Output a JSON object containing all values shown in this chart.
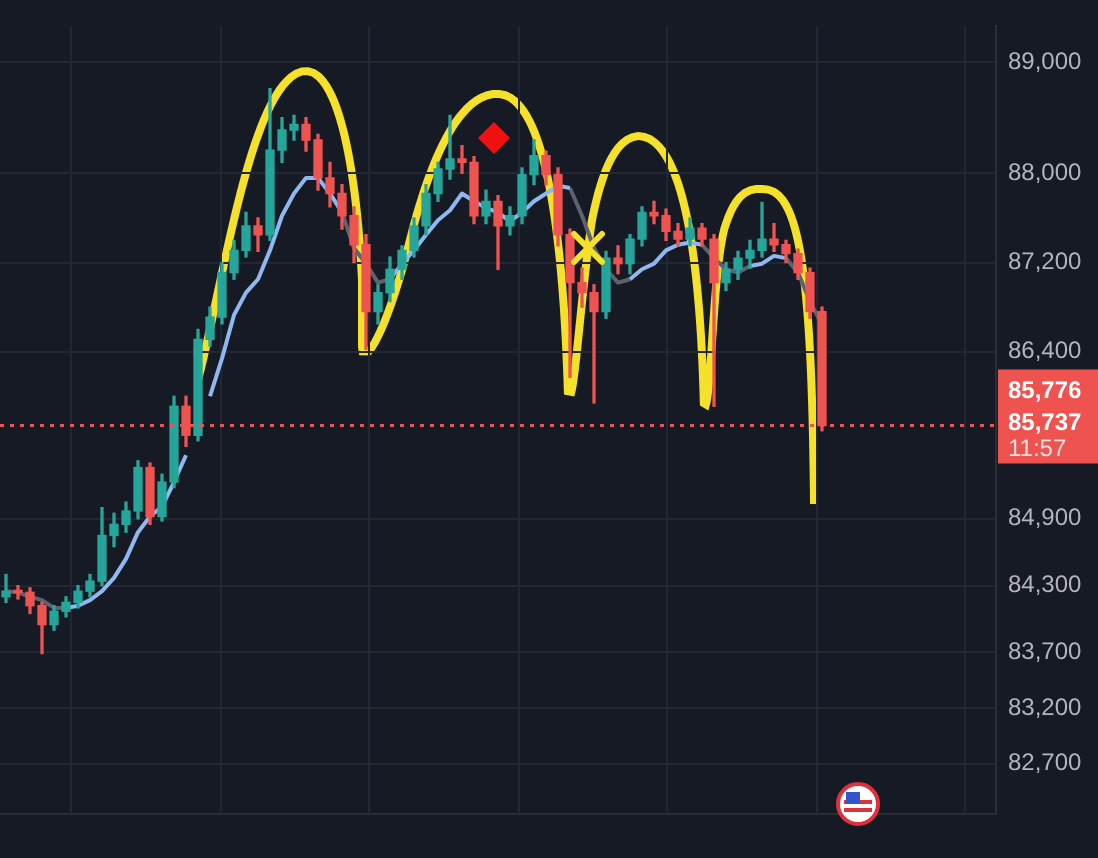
{
  "chart_data": {
    "type": "candlestick",
    "categories": [
      null,
      null,
      null,
      null,
      null,
      null,
      null,
      null,
      null,
      null,
      null,
      null,
      null,
      null,
      null,
      null,
      null,
      null,
      null,
      null,
      null,
      null,
      null,
      null,
      null,
      null,
      null,
      null,
      null,
      null,
      null,
      null,
      null,
      null,
      null,
      null,
      null,
      null,
      null,
      null,
      null,
      null,
      null,
      null,
      null,
      null,
      null,
      null,
      null,
      null,
      null,
      null,
      null,
      null,
      null,
      null,
      null,
      null,
      null,
      null,
      null,
      null,
      null,
      null,
      null,
      null,
      null,
      null,
      null,
      null,
      null,
      null,
      null,
      null,
      null,
      null,
      null,
      null,
      null,
      null,
      null,
      null,
      null
    ],
    "ohlc": [
      [
        84200,
        84400,
        84150,
        84250
      ],
      [
        84250,
        84300,
        84180,
        84240
      ],
      [
        84240,
        84280,
        84050,
        84120
      ],
      [
        84120,
        84150,
        83690,
        83950
      ],
      [
        83950,
        84120,
        83900,
        84070
      ],
      [
        84070,
        84200,
        84020,
        84150
      ],
      [
        84150,
        84300,
        84100,
        84250
      ],
      [
        84250,
        84400,
        84200,
        84340
      ],
      [
        84340,
        85000,
        84300,
        84750
      ],
      [
        84750,
        84950,
        84650,
        84850
      ],
      [
        84850,
        85050,
        84780,
        84970
      ],
      [
        84970,
        85420,
        84900,
        85360
      ],
      [
        85360,
        85400,
        84850,
        84920
      ],
      [
        84920,
        85300,
        84880,
        85230
      ],
      [
        85230,
        86000,
        85180,
        85910
      ],
      [
        85910,
        86000,
        85550,
        85650
      ],
      [
        85650,
        86600,
        85600,
        86510
      ],
      [
        86510,
        86800,
        86450,
        86710
      ],
      [
        86710,
        87200,
        86650,
        87110
      ],
      [
        87110,
        87400,
        87050,
        87310
      ],
      [
        87310,
        87650,
        87250,
        87530
      ],
      [
        87530,
        87600,
        87300,
        87450
      ],
      [
        87450,
        88760,
        87400,
        88210
      ],
      [
        88210,
        88500,
        88100,
        88390
      ],
      [
        88390,
        88520,
        88300,
        88440
      ],
      [
        88440,
        88500,
        88200,
        88300
      ],
      [
        88300,
        88350,
        87850,
        87960
      ],
      [
        87960,
        88100,
        87700,
        87820
      ],
      [
        87820,
        87900,
        87500,
        87620
      ],
      [
        87620,
        87700,
        87200,
        87360
      ],
      [
        87360,
        87450,
        86420,
        86760
      ],
      [
        86760,
        87000,
        86650,
        86930
      ],
      [
        86930,
        87250,
        86850,
        87140
      ],
      [
        87140,
        87350,
        87050,
        87310
      ],
      [
        87310,
        87600,
        87250,
        87530
      ],
      [
        87530,
        87900,
        87450,
        87820
      ],
      [
        87820,
        88100,
        87750,
        88040
      ],
      [
        88040,
        88520,
        87950,
        88130
      ],
      [
        88130,
        88250,
        88000,
        88100
      ],
      [
        88100,
        88150,
        87550,
        87620
      ],
      [
        87620,
        87850,
        87550,
        87750
      ],
      [
        87750,
        87800,
        87140,
        87530
      ],
      [
        87530,
        87700,
        87450,
        87620
      ],
      [
        87620,
        88050,
        87550,
        87990
      ],
      [
        87990,
        88300,
        87900,
        88160
      ],
      [
        88160,
        88200,
        87900,
        87990
      ],
      [
        87990,
        88050,
        87350,
        87450
      ],
      [
        87450,
        87500,
        86170,
        87020
      ],
      [
        87020,
        87150,
        86800,
        86930
      ],
      [
        86930,
        87000,
        85940,
        86760
      ],
      [
        86760,
        87300,
        86700,
        87240
      ],
      [
        87240,
        87350,
        87100,
        87190
      ],
      [
        87190,
        87450,
        87100,
        87410
      ],
      [
        87410,
        87700,
        87350,
        87650
      ],
      [
        87650,
        87750,
        87550,
        87620
      ],
      [
        87620,
        87680,
        87400,
        87480
      ],
      [
        87480,
        87550,
        87350,
        87410
      ],
      [
        87410,
        87600,
        87350,
        87510
      ],
      [
        87510,
        87550,
        87350,
        87410
      ],
      [
        87410,
        87450,
        85910,
        87020
      ],
      [
        87020,
        87200,
        86950,
        87140
      ],
      [
        87140,
        87300,
        87050,
        87240
      ],
      [
        87240,
        87400,
        87150,
        87310
      ],
      [
        87310,
        87740,
        87250,
        87410
      ],
      [
        87410,
        87550,
        87300,
        87360
      ],
      [
        87360,
        87400,
        87200,
        87280
      ],
      [
        87280,
        87320,
        87050,
        87110
      ],
      [
        87110,
        87150,
        86700,
        86760
      ],
      [
        86760,
        86800,
        85690,
        85737
      ],
      null,
      null,
      null,
      null,
      null,
      null,
      null,
      null,
      null,
      null,
      null,
      null,
      null,
      null
    ],
    "colors": [
      "#26a69a",
      "#ef5350",
      "#ef5350",
      "#ef5350",
      "#26a69a",
      "#26a69a",
      "#26a69a",
      "#26a69a",
      "#26a69a",
      "#26a69a",
      "#26a69a",
      "#26a69a",
      "#ef5350",
      "#26a69a",
      "#26a69a",
      "#ef5350",
      "#26a69a",
      "#26a69a",
      "#26a69a",
      "#26a69a",
      "#26a69a",
      "#ef5350",
      "#26a69a",
      "#26a69a",
      "#26a69a",
      "#ef5350",
      "#ef5350",
      "#ef5350",
      "#ef5350",
      "#ef5350",
      "#ef5350",
      "#26a69a",
      "#26a69a",
      "#26a69a",
      "#26a69a",
      "#26a69a",
      "#26a69a",
      "#26a69a",
      "#ef5350",
      "#ef5350",
      "#26a69a",
      "#ef5350",
      "#26a69a",
      "#26a69a",
      "#26a69a",
      "#ef5350",
      "#ef5350",
      "#ef5350",
      "#ef5350",
      "#ef5350",
      "#26a69a",
      "#ef5350",
      "#26a69a",
      "#26a69a",
      "#ef5350",
      "#ef5350",
      "#ef5350",
      "#26a69a",
      "#ef5350",
      "#ef5350",
      "#26a69a",
      "#26a69a",
      "#26a69a",
      "#26a69a",
      "#ef5350",
      "#ef5350",
      "#ef5350",
      "#ef5350",
      "#ef5350",
      null,
      null,
      null,
      null,
      null,
      null,
      null,
      null,
      null,
      null,
      null,
      null,
      null,
      null
    ],
    "series": [
      {
        "type": "line",
        "color": "#8fb8f0",
        "values": [
          null,
          null,
          null,
          null,
          null,
          84100,
          84120,
          84170,
          84250,
          84370,
          84540,
          84780,
          84920,
          85010,
          85230,
          85470,
          null,
          86000,
          86340,
          86730,
          86930,
          87050,
          87310,
          87620,
          87820,
          87960,
          87960,
          87820,
          87650,
          null,
          null,
          null,
          87050,
          87190,
          87310,
          87450,
          87580,
          87670,
          87820,
          87750,
          87690,
          87650,
          87570,
          87650,
          87750,
          87820,
          87890,
          87870,
          null,
          null,
          null,
          null,
          87050,
          87140,
          87190,
          87310,
          87360,
          87380,
          87360,
          null,
          null,
          null,
          87170,
          87190,
          87260,
          87240,
          null,
          null,
          null,
          null,
          null,
          null,
          null,
          null,
          null,
          null,
          null,
          null,
          null,
          null,
          null,
          null,
          null
        ]
      },
      {
        "type": "line",
        "color": "#5d6270",
        "values": [
          84250,
          84240,
          84200,
          84170,
          84100,
          84100,
          null,
          null,
          null,
          null,
          null,
          null,
          null,
          null,
          null,
          null,
          null,
          null,
          null,
          null,
          null,
          null,
          null,
          null,
          null,
          null,
          null,
          null,
          87650,
          87330,
          87190,
          87020,
          87050,
          null,
          null,
          null,
          null,
          null,
          null,
          null,
          null,
          null,
          null,
          null,
          null,
          null,
          null,
          87870,
          87620,
          87330,
          87140,
          87020,
          87050,
          null,
          null,
          null,
          null,
          null,
          87360,
          87240,
          87140,
          87110,
          87170,
          null,
          null,
          87240,
          87110,
          86850,
          86640,
          null,
          null,
          null,
          null,
          null,
          null,
          null,
          null,
          null,
          null,
          null,
          null,
          null,
          null
        ]
      }
    ],
    "ylim": [
      82250,
      89320
    ],
    "yticks": [
      {
        "value": 82700,
        "label": "82,700"
      },
      {
        "value": 83200,
        "label": "83,200"
      },
      {
        "value": 83700,
        "label": "83,700"
      },
      {
        "value": 84300,
        "label": "84,300"
      },
      {
        "value": 84900,
        "label": "84,900"
      },
      {
        "value": 86400,
        "label": "86,400"
      },
      {
        "value": 87200,
        "label": "87,200"
      },
      {
        "value": 88000,
        "label": "88,000"
      },
      {
        "value": 89000,
        "label": "89,000"
      }
    ],
    "grid": true,
    "tick_labels": "y",
    "marker": "none",
    "ref_lines": [
      {
        "axis": "y",
        "value": 85737,
        "label": "85,737",
        "color": "#ef5350",
        "line_style": "dotted"
      }
    ],
    "annotations": [
      "85,776",
      "11:57"
    ]
  }
}
